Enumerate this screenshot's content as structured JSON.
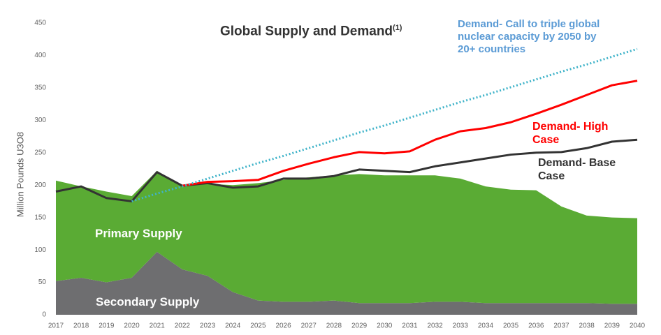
{
  "chart_data": {
    "type": "area_line",
    "title": "Global Supply and Demand",
    "title_note": "(1)",
    "y_label": "Million Pounds U3O8",
    "categories": [
      "2017",
      "2018",
      "2019",
      "2020",
      "2021",
      "2022",
      "2023",
      "2024",
      "2025",
      "2026",
      "2027",
      "2028",
      "2029",
      "2030",
      "2031",
      "2032",
      "2033",
      "2034",
      "2035",
      "2036",
      "2037",
      "2038",
      "2039",
      "2040"
    ],
    "ylim": [
      0,
      450
    ],
    "yticks": [
      0,
      50,
      100,
      150,
      200,
      250,
      300,
      350,
      400,
      450
    ],
    "series": [
      {
        "name": "Secondary Supply",
        "kind": "stacked_area",
        "color": "#6e6e70",
        "values": [
          52,
          57,
          50,
          57,
          97,
          70,
          60,
          35,
          22,
          20,
          20,
          22,
          18,
          18,
          18,
          20,
          20,
          18,
          18,
          18,
          18,
          18,
          17,
          17
        ]
      },
      {
        "name": "Primary Supply",
        "kind": "stacked_area",
        "color": "#5aab34",
        "values": [
          155,
          141,
          140,
          126,
          125,
          128,
          142,
          165,
          181,
          188,
          192,
          193,
          199,
          197,
          197,
          195,
          190,
          180,
          175,
          174,
          149,
          135,
          133,
          132
        ]
      },
      {
        "name": "Demand- Base Case",
        "kind": "line",
        "color": "#333333",
        "values": [
          190,
          198,
          180,
          175,
          220,
          199,
          203,
          196,
          198,
          210,
          210,
          214,
          224,
          222,
          220,
          229,
          235,
          241,
          247,
          250,
          251,
          257,
          267,
          270
        ]
      },
      {
        "name": "Demand- High Case",
        "kind": "line",
        "color": "#ff0000",
        "values": [
          null,
          null,
          null,
          null,
          null,
          199,
          205,
          206,
          208,
          222,
          233,
          243,
          251,
          249,
          252,
          270,
          283,
          288,
          297,
          310,
          324,
          339,
          354,
          361
        ]
      },
      {
        "name": "Demand- Call to triple global nuclear capacity by 2050 by 20+ countries",
        "kind": "dotted_line",
        "color": "#3fb3c9",
        "values": [
          null,
          null,
          null,
          175,
          187,
          198,
          210,
          222,
          234,
          245,
          257,
          269,
          281,
          292,
          304,
          316,
          328,
          339,
          351,
          363,
          375,
          386,
          398,
          410
        ]
      }
    ]
  }
}
